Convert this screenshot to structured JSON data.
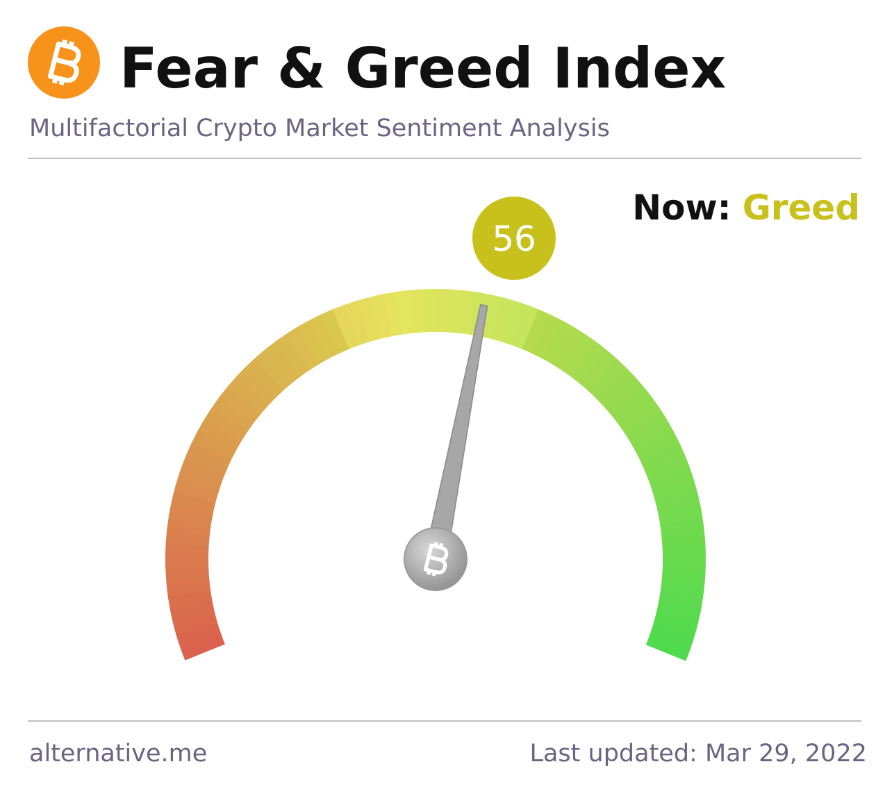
{
  "chart_data": {
    "type": "gauge",
    "title": "Fear & Greed Index",
    "subtitle": "Multifactorial Crypto Market Sentiment Analysis",
    "now_label": "Now:",
    "classification": "Greed",
    "value": 56,
    "ylim": [
      0,
      100
    ],
    "color": "#c8c11c",
    "source": "alternative.me",
    "updated": "Last updated: Mar 29, 2022"
  }
}
